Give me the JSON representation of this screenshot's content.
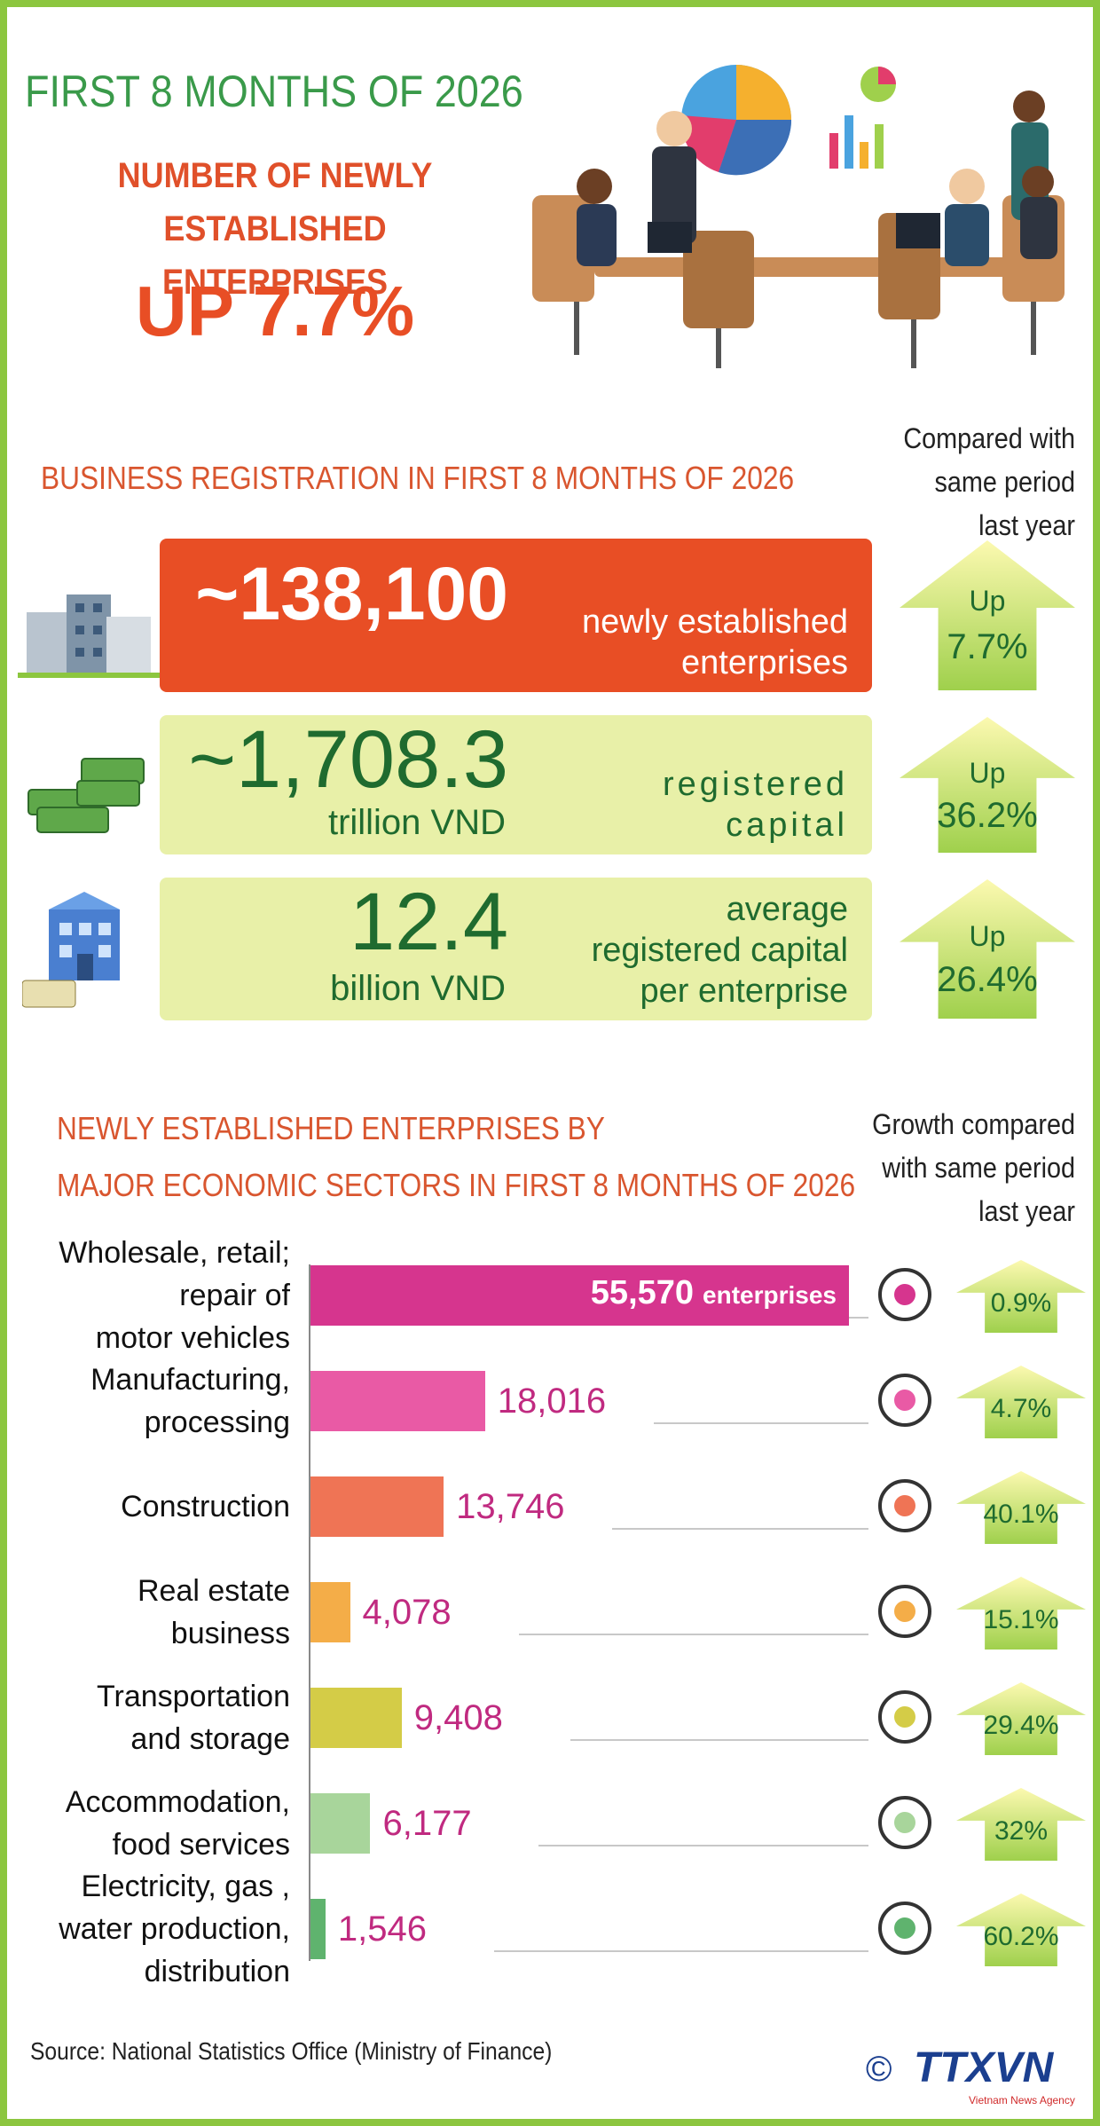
{
  "header": {
    "period": "FIRST 8 MONTHS OF 2026",
    "headline": "NUMBER OF NEWLY\nESTABLISHED ENTERPRISES",
    "change": "UP 7.7%"
  },
  "registration": {
    "title": "BUSINESS REGISTRATION IN FIRST 8 MONTHS OF 2026",
    "comparison_note": "Compared with\nsame period\nlast year",
    "items": [
      {
        "value": "~138,100",
        "description": "newly established\nenterprises",
        "direction": "Up",
        "change": "7.7%"
      },
      {
        "value": "~1,708.3",
        "unit": "trillion VND",
        "description": "registered\ncapital",
        "direction": "Up",
        "change": "36.2%"
      },
      {
        "value": "12.4",
        "unit": "billion VND",
        "description": "average\nregistered capital\nper enterprise",
        "direction": "Up",
        "change": "26.4%"
      }
    ]
  },
  "chart_data": {
    "type": "bar",
    "orientation": "horizontal",
    "title": "NEWLY ESTABLISHED ENTERPRISES BY\nMAJOR ECONOMIC SECTORS IN FIRST 8 MONTHS OF 2026",
    "growth_note": "Growth compared\nwith same period\nlast year",
    "categories": [
      "Wholesale, retail;\nrepair of\nmotor vehicles",
      "Manufacturing,\nprocessing",
      "Construction",
      "Real estate\nbusiness",
      "Transportation\nand storage",
      "Accommodation,\nfood services",
      "Electricity, gas ,\nwater production,\ndistribution"
    ],
    "values": [
      55570,
      18016,
      13746,
      4078,
      9408,
      6177,
      1546
    ],
    "value_labels": [
      "55,570",
      "18,016",
      "13,746",
      "4,078",
      "9,408",
      "6,177",
      "1,546"
    ],
    "unit_label": "enterprises",
    "colors": [
      "#d6358e",
      "#e95aa5",
      "#ef7455",
      "#f4ad48",
      "#d4cc47",
      "#a8d59b",
      "#5fb36e"
    ],
    "growth": [
      "0.9%",
      "4.7%",
      "40.1%",
      "15.1%",
      "29.4%",
      "32%",
      "60.2%"
    ]
  },
  "footer": {
    "source": "Source: National Statistics Office (Ministry of Finance)",
    "copyright": "©",
    "logo": "TTXVN",
    "logo_subtitle": "Vietnam News Agency"
  }
}
